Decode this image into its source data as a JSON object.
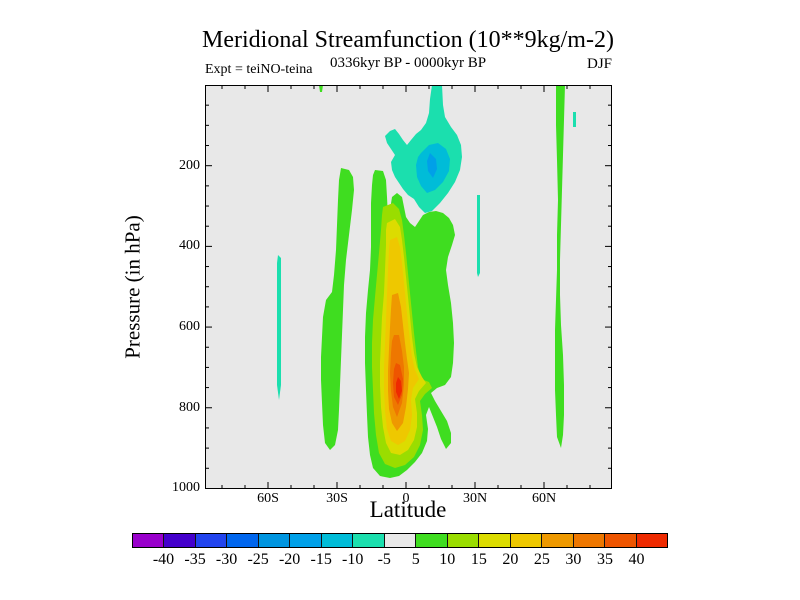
{
  "page": {
    "background": "#ffffff",
    "plot_background": "#e8e8e8",
    "frame_color": "#000000",
    "text_color": "#000000"
  },
  "title": "Meridional Streamfunction (10**9kg/m-2)",
  "subtitle": {
    "left": "Expt = teiNO-teina",
    "center": "0336kyr BP - 0000kyr BP",
    "right": "DJF"
  },
  "axes": {
    "x": {
      "label": "Latitude",
      "major": [
        {
          "deg": -60,
          "label": "60S"
        },
        {
          "deg": -30,
          "label": "30S"
        },
        {
          "deg": 0,
          "label": "0"
        },
        {
          "deg": 30,
          "label": "30N"
        },
        {
          "deg": 60,
          "label": "60N"
        }
      ],
      "minor_deg": [
        -80,
        -70,
        -50,
        -40,
        -20,
        -10,
        10,
        20,
        40,
        50,
        70,
        80,
        90
      ],
      "range_deg": [
        -87,
        90
      ]
    },
    "y": {
      "label": "Pressure (in hPa)",
      "major": [
        {
          "value": 200,
          "label": "200"
        },
        {
          "value": 400,
          "label": "400"
        },
        {
          "value": 600,
          "label": "600"
        },
        {
          "value": 800,
          "label": "800"
        },
        {
          "value": 1000,
          "label": "1000"
        }
      ],
      "minor": [
        50,
        100,
        150,
        250,
        300,
        350,
        450,
        500,
        550,
        650,
        700,
        750,
        850,
        900,
        950
      ],
      "range_hPa": [
        0,
        1000
      ],
      "increases_downward": true
    }
  },
  "colorbar": {
    "labels": [
      "-40",
      "-35",
      "-30",
      "-25",
      "-20",
      "-15",
      "-10",
      "-5",
      "5",
      "10",
      "15",
      "20",
      "25",
      "30",
      "35",
      "40"
    ],
    "colors": [
      "#9900cc",
      "#4400cc",
      "#2244ee",
      "#0066ee",
      "#0095e0",
      "#00a0e8",
      "#00bcd8",
      "#1bdfae",
      "#e8e8e8",
      "#3fdd20",
      "#9add00",
      "#dcdc00",
      "#eec800",
      "#ee9900",
      "#ee7700",
      "#ee5500",
      "#ee2a00"
    ],
    "border_color": "#000000"
  },
  "contour_colors": {
    "neg5": "#1bdfae",
    "neg10": "#00bcd8",
    "neg15": "#00a0e8",
    "pos5": "#3fdd20",
    "pos10": "#9add00",
    "pos15": "#dcdc00",
    "pos20": "#eec800",
    "pos25": "#ee9900",
    "pos30": "#ee7700",
    "pos35": "#ee5500",
    "pos40": "#ee2a00"
  },
  "chart_data": {
    "type": "heatmap",
    "subtype": "filled-contour",
    "title": "Meridional Streamfunction (10**9kg/m-2)",
    "experiment": "teiNO-teina",
    "period": "0336kyr BP - 0000kyr BP",
    "season": "DJF",
    "units": "10**9 kg/m-2",
    "xlabel": "Latitude",
    "ylabel": "Pressure (in hPa)",
    "x_range_deg": [
      -87,
      90
    ],
    "y_range_hPa": [
      0,
      1000
    ],
    "grid": false,
    "contour_interval": 5,
    "colorbar_boundaries": [
      -40,
      -35,
      -30,
      -25,
      -20,
      -15,
      -10,
      -5,
      5,
      10,
      15,
      20,
      25,
      30,
      35,
      40
    ],
    "no_fill_band": [
      -5,
      5
    ],
    "features": [
      {
        "name": "main-positive-cell",
        "sign": "positive",
        "lat_extent": [
          -17,
          21
        ],
        "pressure_extent_hPa": [
          270,
          975
        ],
        "max_level_band": "35 to 40",
        "max_location": {
          "lat": -1,
          "pressure_hPa": 750
        },
        "nested_levels": [
          5,
          10,
          15,
          20,
          25,
          30,
          35
        ]
      },
      {
        "name": "upper-negative-cell",
        "sign": "negative",
        "lat_extent": [
          3,
          27
        ],
        "pressure_extent_hPa": [
          0,
          320
        ],
        "min_level_band": "-20 to -15",
        "min_location": {
          "lat": 12,
          "pressure_hPa": 195
        },
        "note": "narrow column reaches plot top near lat 10N",
        "nested_levels": [
          -5,
          -10,
          -15
        ]
      },
      {
        "name": "positive-band-30S",
        "sign": "positive",
        "lat_extent": [
          -38,
          -22
        ],
        "pressure_extent_hPa": [
          205,
          900
        ],
        "level": 5
      },
      {
        "name": "positive-band-65N",
        "sign": "positive",
        "lat_extent": [
          64,
          68
        ],
        "pressure_extent_hPa": [
          0,
          900
        ],
        "level": 5
      },
      {
        "name": "weak-negative-sliver-56S",
        "sign": "negative",
        "lat_center": -56,
        "pressure_extent_hPa": [
          420,
          780
        ],
        "level": -5
      },
      {
        "name": "weak-negative-sliver-31N",
        "sign": "negative",
        "lat_center": 31,
        "pressure_extent_hPa": [
          270,
          470
        ],
        "level": -5
      },
      {
        "name": "weak-negative-sliver-73N",
        "sign": "negative",
        "lat_center": 73,
        "pressure_extent_hPa": [
          65,
          105
        ],
        "level": -5
      },
      {
        "name": "small-positive-mark-top-37S",
        "sign": "positive",
        "lat_center": -37,
        "pressure_extent_hPa": [
          0,
          15
        ],
        "level": 5
      }
    ]
  }
}
